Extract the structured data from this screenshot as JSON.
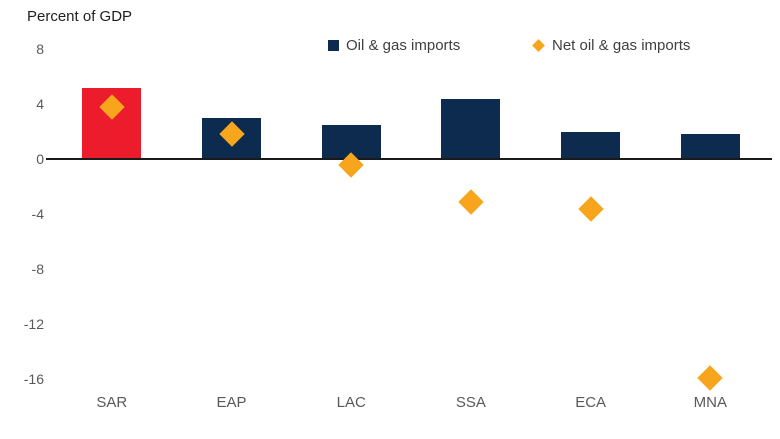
{
  "title": "Percent of GDP",
  "chart_data": {
    "type": "bar",
    "title": "Percent of GDP",
    "categories": [
      "SAR",
      "EAP",
      "LAC",
      "SSA",
      "ECA",
      "MNA"
    ],
    "series": [
      {
        "name": "Oil & gas imports",
        "type": "bar",
        "color": "#0C2B4E",
        "highlight": {
          "category": "SAR",
          "color": "#EC1C2D"
        },
        "values": [
          5.2,
          3.0,
          2.5,
          4.4,
          2.0,
          1.8
        ]
      },
      {
        "name": "Net oil & gas imports",
        "type": "scatter",
        "marker": "diamond",
        "color": "#F7A51C",
        "values": [
          3.8,
          1.8,
          -0.4,
          -3.1,
          -3.6,
          -15.9
        ]
      }
    ],
    "ylabel": "Percent of GDP",
    "yticks": [
      8,
      4,
      0,
      -4,
      -8,
      -12,
      -16
    ],
    "ylim": [
      -18,
      9
    ],
    "grid": false,
    "legend_position": "top"
  }
}
